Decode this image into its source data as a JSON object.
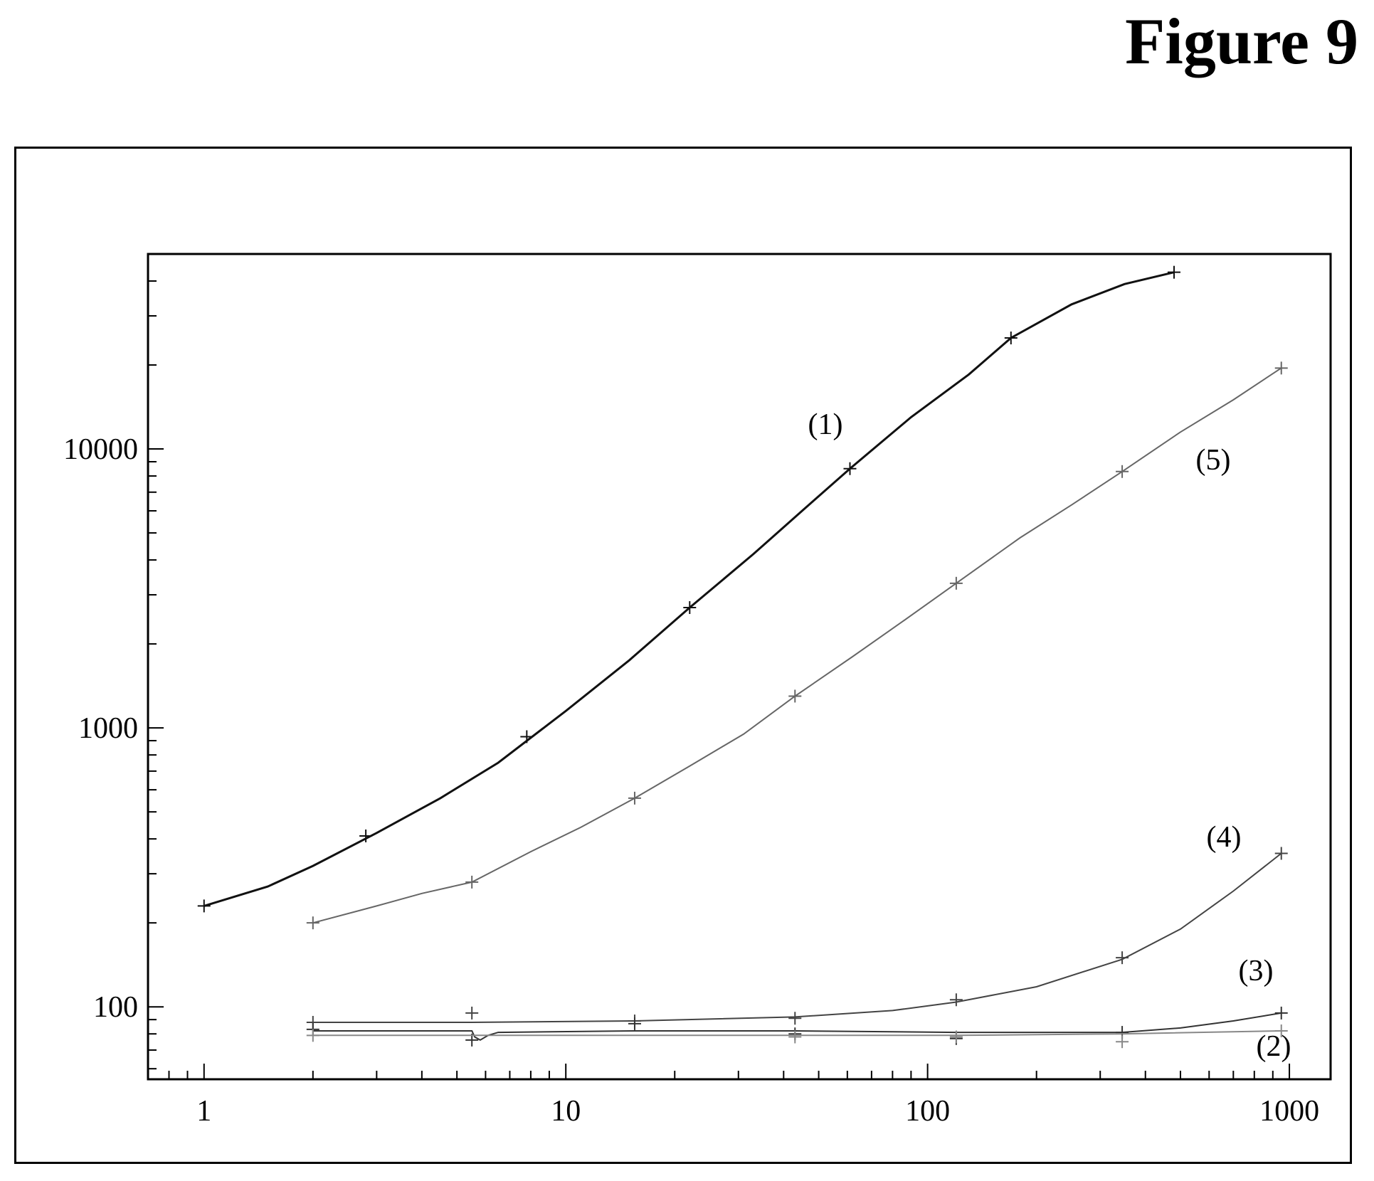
{
  "figure": {
    "title": "Figure 9"
  },
  "chart_data": {
    "type": "line",
    "title": "",
    "xlabel": "",
    "ylabel": "",
    "x_scale": "log",
    "y_scale": "log",
    "xlim": [
      0.7,
      1300
    ],
    "ylim": [
      55,
      50000
    ],
    "grid": false,
    "legend": "none",
    "x_ticks": [
      {
        "value": 1,
        "label": "1"
      },
      {
        "value": 10,
        "label": "10"
      },
      {
        "value": 100,
        "label": "100"
      },
      {
        "value": 1000,
        "label": "1000"
      }
    ],
    "y_ticks": [
      {
        "value": 100,
        "label": "100"
      },
      {
        "value": 1000,
        "label": "1000"
      },
      {
        "value": 10000,
        "label": "10000"
      }
    ],
    "series": [
      {
        "label": "(1)",
        "color": "#111111",
        "points": [
          [
            1,
            230
          ],
          [
            2.8,
            410
          ],
          [
            7.8,
            930
          ],
          [
            22,
            2700
          ],
          [
            61,
            8500
          ],
          [
            170,
            25000
          ],
          [
            480,
            43000
          ]
        ],
        "curve": [
          [
            1,
            230
          ],
          [
            1.5,
            270
          ],
          [
            2,
            320
          ],
          [
            3,
            420
          ],
          [
            4.5,
            560
          ],
          [
            6.5,
            750
          ],
          [
            10,
            1150
          ],
          [
            15,
            1750
          ],
          [
            22,
            2700
          ],
          [
            33,
            4200
          ],
          [
            45,
            6000
          ],
          [
            61,
            8500
          ],
          [
            90,
            13000
          ],
          [
            130,
            18500
          ],
          [
            170,
            25000
          ],
          [
            250,
            33000
          ],
          [
            350,
            39000
          ],
          [
            480,
            43000
          ]
        ]
      },
      {
        "label": "(5)",
        "color": "#666666",
        "points": [
          [
            2,
            200
          ],
          [
            5.5,
            280
          ],
          [
            15.5,
            560
          ],
          [
            43,
            1300
          ],
          [
            120,
            3300
          ],
          [
            345,
            8300
          ],
          [
            950,
            19500
          ]
        ],
        "curve": [
          [
            2,
            200
          ],
          [
            3,
            230
          ],
          [
            4,
            255
          ],
          [
            5.5,
            280
          ],
          [
            8,
            360
          ],
          [
            11,
            440
          ],
          [
            15.5,
            560
          ],
          [
            22,
            730
          ],
          [
            31,
            950
          ],
          [
            43,
            1300
          ],
          [
            62,
            1800
          ],
          [
            85,
            2400
          ],
          [
            120,
            3300
          ],
          [
            180,
            4800
          ],
          [
            250,
            6300
          ],
          [
            345,
            8300
          ],
          [
            500,
            11500
          ],
          [
            700,
            15000
          ],
          [
            950,
            19500
          ]
        ]
      },
      {
        "label": "(4)",
        "color": "#444444",
        "points": [
          [
            2,
            88
          ],
          [
            5.5,
            95
          ],
          [
            15.5,
            89
          ],
          [
            43,
            91
          ],
          [
            120,
            106
          ],
          [
            345,
            150
          ],
          [
            950,
            355
          ]
        ],
        "curve": [
          [
            2,
            88
          ],
          [
            5.5,
            88
          ],
          [
            15.5,
            89
          ],
          [
            43,
            92
          ],
          [
            80,
            97
          ],
          [
            120,
            104
          ],
          [
            200,
            118
          ],
          [
            345,
            148
          ],
          [
            500,
            190
          ],
          [
            700,
            260
          ],
          [
            950,
            355
          ]
        ]
      },
      {
        "label": "(3)",
        "color": "#333333",
        "points": [
          [
            2,
            83
          ],
          [
            5.5,
            76
          ],
          [
            15.5,
            87
          ],
          [
            43,
            80
          ],
          [
            120,
            77
          ],
          [
            345,
            81
          ],
          [
            950,
            95
          ]
        ],
        "curve": [
          [
            2,
            82
          ],
          [
            5.5,
            82
          ],
          [
            5.6,
            78
          ],
          [
            5.8,
            76
          ],
          [
            6.1,
            79
          ],
          [
            6.5,
            81
          ],
          [
            15.5,
            82
          ],
          [
            43,
            82
          ],
          [
            120,
            81
          ],
          [
            250,
            81
          ],
          [
            345,
            81
          ],
          [
            500,
            84
          ],
          [
            700,
            89
          ],
          [
            950,
            95
          ]
        ]
      },
      {
        "label": "(2)",
        "color": "#888888",
        "points": [
          [
            2,
            79
          ],
          [
            43,
            78
          ],
          [
            120,
            78
          ],
          [
            345,
            75
          ],
          [
            950,
            82
          ]
        ],
        "curve": [
          [
            2,
            79
          ],
          [
            43,
            79
          ],
          [
            120,
            79
          ],
          [
            345,
            80
          ],
          [
            950,
            82
          ]
        ]
      }
    ]
  }
}
